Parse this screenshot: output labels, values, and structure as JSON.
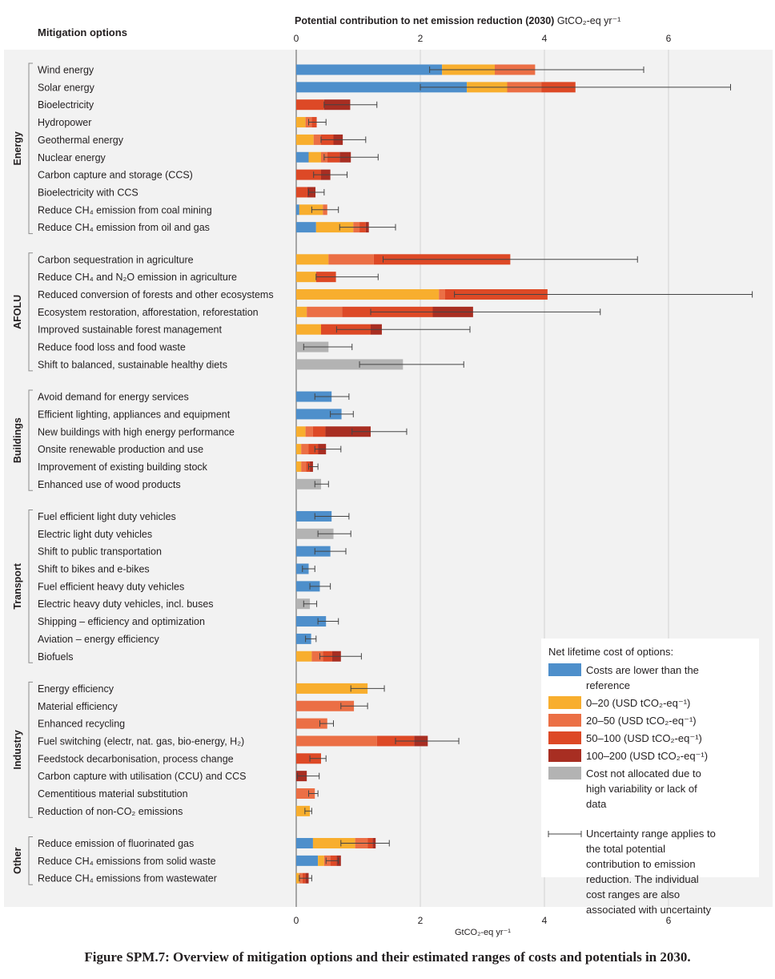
{
  "chart_data": {
    "type": "bar",
    "stacked": true,
    "orientation": "horizontal",
    "title": "Potential contribution to net emission reduction (2030)",
    "title_unit": "GtCO₂-eq yr⁻¹",
    "left_header": "Mitigation options",
    "xlabel_bottom": "GtCO₂-eq yr⁻¹",
    "xlim": [
      0,
      7.5
    ],
    "xticks": [
      0,
      2,
      4,
      6
    ],
    "grid": true,
    "cost_classes": [
      {
        "key": "neg",
        "label": "Costs are lower than the reference",
        "color": "#4e8fcb"
      },
      {
        "key": "c20",
        "label": "0–20 (USD tCO₂-eq⁻¹)",
        "color": "#f8ae2e"
      },
      {
        "key": "c50",
        "label": "20–50 (USD tCO₂-eq⁻¹)",
        "color": "#eb6f45"
      },
      {
        "key": "c100",
        "label": "50–100 (USD tCO₂-eq⁻¹)",
        "color": "#dd4926"
      },
      {
        "key": "c200",
        "label": "100–200 (USD tCO₂-eq⁻¹)",
        "color": "#a82e22"
      },
      {
        "key": "na",
        "label": "Cost not allocated due to high variability or lack of data",
        "color": "#b3b3b3"
      }
    ],
    "legend": {
      "title": "Net lifetime cost of options:",
      "position": "bottom-right",
      "uncertainty_text": "Uncertainty range applies to the total potential contribution to emission reduction. The individual cost ranges are also associated with uncertainty"
    },
    "sectors": [
      {
        "name": "Energy",
        "options": [
          {
            "label": "Wind energy",
            "segments": {
              "neg": 2.35,
              "c20": 0.85,
              "c50": 0.65
            },
            "err": [
              2.15,
              5.6
            ]
          },
          {
            "label": "Solar energy",
            "segments": {
              "neg": 2.75,
              "c20": 0.65,
              "c50": 0.55,
              "c100": 0.55
            },
            "err": [
              2.0,
              7.0
            ]
          },
          {
            "label": "Bioelectricity",
            "segments": {
              "c100": 0.45,
              "c200": 0.42
            },
            "err": [
              0.45,
              1.3
            ]
          },
          {
            "label": "Hydropower",
            "segments": {
              "c20": 0.15,
              "c50": 0.1,
              "c100": 0.08
            },
            "err": [
              0.2,
              0.48
            ]
          },
          {
            "label": "Geothermal energy",
            "segments": {
              "c20": 0.28,
              "c50": 0.12,
              "c100": 0.2,
              "c200": 0.15
            },
            "err": [
              0.4,
              1.12
            ]
          },
          {
            "label": "Nuclear energy",
            "segments": {
              "neg": 0.2,
              "c20": 0.2,
              "c50": 0.1,
              "c100": 0.2,
              "c200": 0.18
            },
            "err": [
              0.45,
              1.32
            ]
          },
          {
            "label": "Carbon capture and storage (CCS)",
            "segments": {
              "c100": 0.4,
              "c200": 0.15
            },
            "err": [
              0.28,
              0.82
            ]
          },
          {
            "label": "Bioelectricity with CCS",
            "segments": {
              "c100": 0.18,
              "c200": 0.13
            },
            "err": [
              0.2,
              0.45
            ]
          },
          {
            "label": "Reduce CH₄ emission from coal mining",
            "segments": {
              "neg": 0.05,
              "c20": 0.38,
              "c50": 0.07
            },
            "err": [
              0.25,
              0.68
            ]
          },
          {
            "label": "Reduce CH₄ emission from oil and gas",
            "segments": {
              "neg": 0.32,
              "c20": 0.6,
              "c50": 0.1,
              "c100": 0.1,
              "c200": 0.05
            },
            "err": [
              0.7,
              1.6
            ]
          }
        ]
      },
      {
        "name": "AFOLU",
        "options": [
          {
            "label": "Carbon sequestration in agriculture",
            "segments": {
              "c20": 0.52,
              "c50": 0.73,
              "c100": 2.2
            },
            "err": [
              1.4,
              5.5
            ]
          },
          {
            "label": "Reduce CH₄ and N₂O emission in agriculture",
            "segments": {
              "c20": 0.32,
              "c100": 0.32
            },
            "err": [
              0.32,
              1.32
            ]
          },
          {
            "label": "Reduced conversion of forests and other ecosystems",
            "segments": {
              "c20": 2.3,
              "c50": 0.1,
              "c100": 1.65
            },
            "err": [
              2.55,
              7.35
            ]
          },
          {
            "label": "Ecosystem restoration, afforestation, reforestation",
            "segments": {
              "c20": 0.17,
              "c50": 0.57,
              "c100": 1.46,
              "c200": 0.65
            },
            "err": [
              1.2,
              4.9
            ]
          },
          {
            "label": "Improved sustainable forest management",
            "segments": {
              "c20": 0.4,
              "c100": 0.8,
              "c200": 0.18
            },
            "err": [
              0.65,
              2.8
            ]
          },
          {
            "label": "Reduce food loss and food waste",
            "segments": {
              "na": 0.52
            },
            "err": [
              0.12,
              0.9
            ]
          },
          {
            "label": "Shift to balanced, sustainable healthy diets",
            "segments": {
              "na": 1.72
            },
            "err": [
              1.02,
              2.7
            ]
          }
        ]
      },
      {
        "name": "Buildings",
        "options": [
          {
            "label": "Avoid demand for energy services",
            "segments": {
              "neg": 0.57
            },
            "err": [
              0.3,
              0.85
            ]
          },
          {
            "label": "Efficient lighting, appliances and equipment",
            "segments": {
              "neg": 0.73
            },
            "err": [
              0.55,
              0.92
            ]
          },
          {
            "label": "New buildings with high energy performance",
            "segments": {
              "c20": 0.15,
              "c50": 0.12,
              "c100": 0.2,
              "c200": 0.73
            },
            "err": [
              0.9,
              1.78
            ]
          },
          {
            "label": "Onsite renewable production and use",
            "segments": {
              "c20": 0.08,
              "c50": 0.12,
              "c100": 0.15,
              "c200": 0.13
            },
            "err": [
              0.3,
              0.72
            ]
          },
          {
            "label": "Improvement of existing building stock",
            "segments": {
              "c20": 0.08,
              "c50": 0.08,
              "c100": 0.06,
              "c200": 0.05
            },
            "err": [
              0.2,
              0.35
            ]
          },
          {
            "label": "Enhanced use of wood products",
            "segments": {
              "na": 0.4
            },
            "err": [
              0.3,
              0.52
            ]
          }
        ]
      },
      {
        "name": "Transport",
        "options": [
          {
            "label": "Fuel efficient light duty vehicles",
            "segments": {
              "neg": 0.57
            },
            "err": [
              0.3,
              0.85
            ]
          },
          {
            "label": "Electric light duty vehicles",
            "segments": {
              "na": 0.6
            },
            "err": [
              0.35,
              0.88
            ]
          },
          {
            "label": "Shift to public transportation",
            "segments": {
              "neg": 0.55
            },
            "err": [
              0.3,
              0.8
            ]
          },
          {
            "label": "Shift to bikes and e-bikes",
            "segments": {
              "neg": 0.2
            },
            "err": [
              0.1,
              0.3
            ]
          },
          {
            "label": "Fuel efficient heavy duty vehicles",
            "segments": {
              "neg": 0.38
            },
            "err": [
              0.22,
              0.55
            ]
          },
          {
            "label": "Electric heavy duty vehicles, incl. buses",
            "segments": {
              "na": 0.22
            },
            "err": [
              0.12,
              0.33
            ]
          },
          {
            "label": "Shipping – efficiency and optimization",
            "segments": {
              "neg": 0.48
            },
            "err": [
              0.35,
              0.68
            ]
          },
          {
            "label": "Aviation – energy efficiency",
            "segments": {
              "neg": 0.24
            },
            "err": [
              0.15,
              0.32
            ]
          },
          {
            "label": "Biofuels",
            "segments": {
              "c20": 0.25,
              "c50": 0.18,
              "c100": 0.15,
              "c200": 0.14
            },
            "err": [
              0.38,
              1.05
            ]
          }
        ]
      },
      {
        "name": "Industry",
        "options": [
          {
            "label": "Energy efficiency",
            "segments": {
              "c20": 1.15
            },
            "err": [
              0.88,
              1.42
            ]
          },
          {
            "label": "Material efficiency",
            "segments": {
              "c50": 0.93
            },
            "err": [
              0.72,
              1.15
            ]
          },
          {
            "label": "Enhanced recycling",
            "segments": {
              "c50": 0.5
            },
            "err": [
              0.38,
              0.6
            ]
          },
          {
            "label": "Fuel switching (electr, nat. gas, bio-energy, H₂)",
            "segments": {
              "c50": 1.3,
              "c100": 0.6,
              "c200": 0.22
            },
            "err": [
              1.6,
              2.62
            ]
          },
          {
            "label": "Feedstock decarbonisation, process change",
            "segments": {
              "c100": 0.4
            },
            "err": [
              0.22,
              0.48
            ]
          },
          {
            "label": "Carbon capture with utilisation (CCU) and CCS",
            "segments": {
              "c200": 0.17
            },
            "err": [
              0.02,
              0.37
            ]
          },
          {
            "label": "Cementitious material substitution",
            "segments": {
              "c50": 0.3
            },
            "err": [
              0.2,
              0.35
            ]
          },
          {
            "label": "Reduction of non-CO₂ emissions",
            "segments": {
              "c20": 0.22
            },
            "err": [
              0.14,
              0.25
            ]
          }
        ]
      },
      {
        "name": "Other",
        "options": [
          {
            "label": "Reduce emission of fluorinated gas",
            "segments": {
              "neg": 0.27,
              "c20": 0.68,
              "c50": 0.2,
              "c100": 0.08,
              "c200": 0.05
            },
            "err": [
              0.72,
              1.5
            ]
          },
          {
            "label": "Reduce CH₄ emissions from solid waste",
            "segments": {
              "neg": 0.35,
              "c20": 0.1,
              "c50": 0.1,
              "c100": 0.1,
              "c200": 0.07
            },
            "err": [
              0.48,
              0.68
            ]
          },
          {
            "label": "Reduce CH₄ emissions from wastewater",
            "segments": {
              "c20": 0.05,
              "c50": 0.05,
              "c100": 0.05,
              "c200": 0.05
            },
            "err": [
              0.05,
              0.25
            ]
          }
        ]
      }
    ]
  },
  "caption": "Figure SPM.7: Overview of mitigation options and their estimated ranges of costs and potentials in 2030."
}
